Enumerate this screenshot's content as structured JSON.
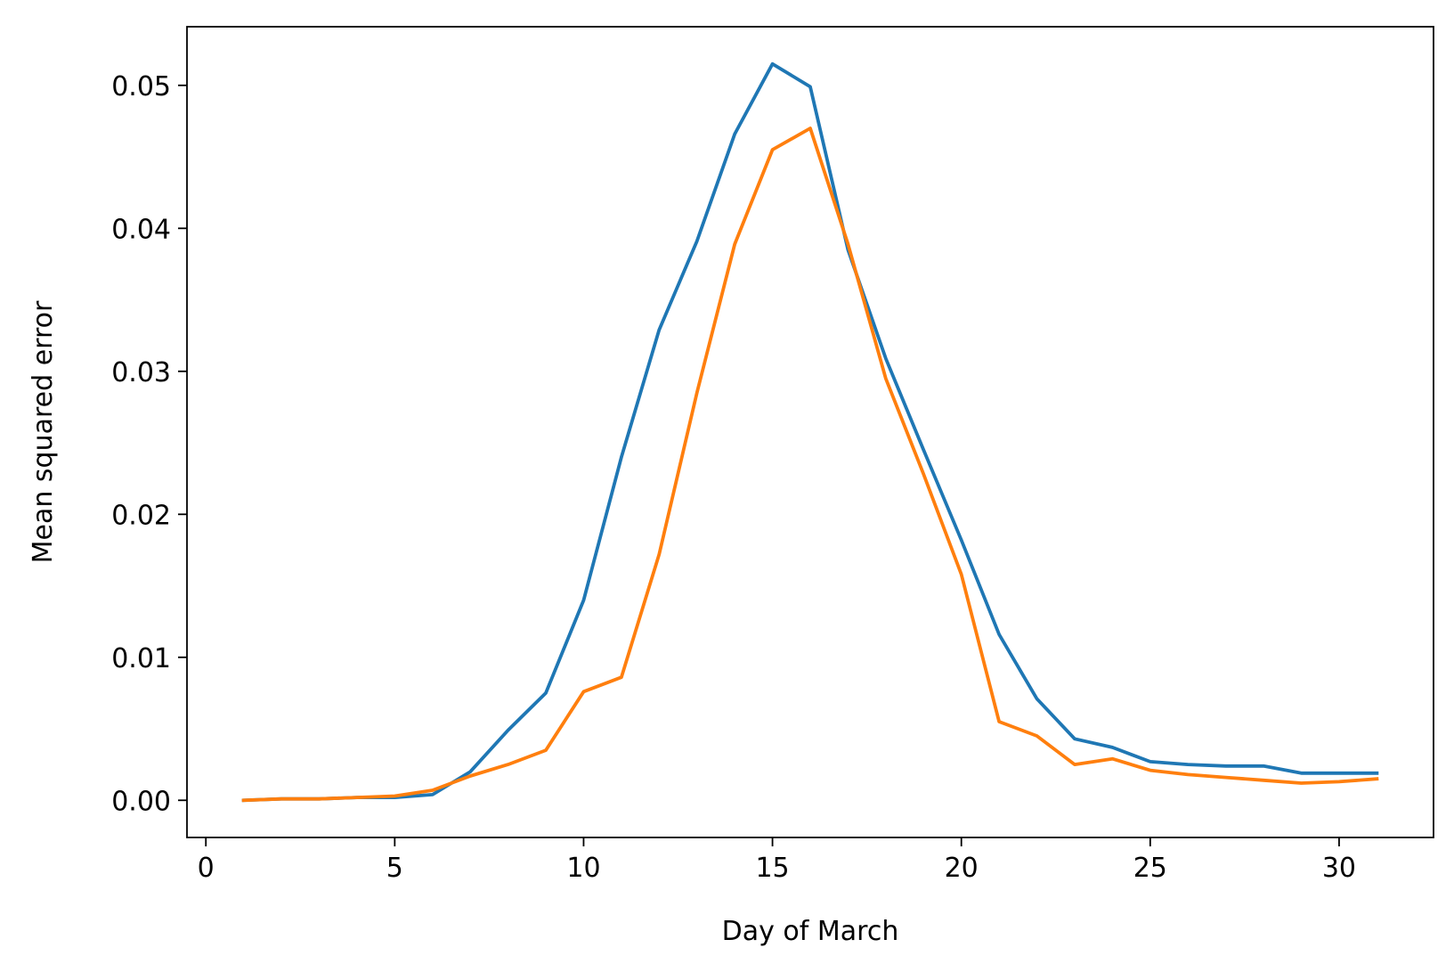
{
  "chart_data": {
    "type": "line",
    "title": "",
    "xlabel": "Day of March",
    "ylabel": "Mean squared error",
    "xlim": [
      -0.5,
      32.5
    ],
    "ylim": [
      -0.0026,
      0.0541
    ],
    "xticks": [
      0,
      5,
      10,
      15,
      20,
      25,
      30
    ],
    "xtick_labels": [
      "0",
      "5",
      "10",
      "15",
      "20",
      "25",
      "30"
    ],
    "yticks": [
      0.0,
      0.01,
      0.02,
      0.03,
      0.04,
      0.05
    ],
    "ytick_labels": [
      "0.00",
      "0.01",
      "0.02",
      "0.03",
      "0.04",
      "0.05"
    ],
    "grid": false,
    "legend": null,
    "x": [
      1,
      2,
      3,
      4,
      5,
      6,
      7,
      8,
      9,
      10,
      11,
      12,
      13,
      14,
      15,
      16,
      17,
      18,
      19,
      20,
      21,
      22,
      23,
      24,
      25,
      26,
      27,
      28,
      29,
      30,
      31
    ],
    "series": [
      {
        "color": "#1f77b4",
        "values": [
          0.0,
          0.0001,
          0.0001,
          0.0002,
          0.0002,
          0.0004,
          0.002,
          0.0049,
          0.0075,
          0.014,
          0.024,
          0.0329,
          0.0391,
          0.0466,
          0.0515,
          0.0499,
          0.0385,
          0.0309,
          0.0245,
          0.0182,
          0.0116,
          0.0071,
          0.0043,
          0.0037,
          0.0027,
          0.0025,
          0.0024,
          0.0024,
          0.0019,
          0.0019,
          0.0019
        ]
      },
      {
        "color": "#ff7f0e",
        "values": [
          0.0,
          0.0001,
          0.0001,
          0.0002,
          0.0003,
          0.0007,
          0.0017,
          0.0025,
          0.0035,
          0.0076,
          0.0086,
          0.0172,
          0.0285,
          0.0389,
          0.0455,
          0.047,
          0.0389,
          0.0295,
          0.0228,
          0.0158,
          0.0055,
          0.0045,
          0.0025,
          0.0029,
          0.0021,
          0.0018,
          0.0016,
          0.0014,
          0.0012,
          0.0013,
          0.0015
        ]
      }
    ]
  }
}
